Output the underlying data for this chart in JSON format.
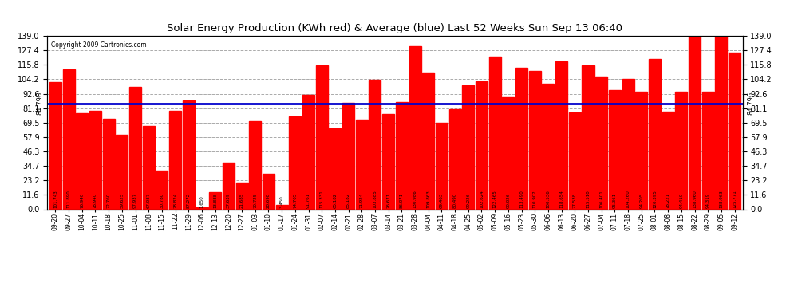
{
  "title": "Solar Energy Production (KWh red) & Average (blue) Last 52 Weeks Sun Sep 13 06:40",
  "copyright": "Copyright 2009 Cartronics.com",
  "bar_color": "#ff0000",
  "avg_color": "#0000cc",
  "background_color": "#ffffff",
  "grid_color": "#aaaaaa",
  "ylim": [
    0,
    139.0
  ],
  "yticks": [
    0.0,
    11.6,
    23.2,
    34.7,
    46.3,
    57.9,
    69.5,
    81.1,
    92.6,
    104.2,
    115.8,
    127.4,
    139.0
  ],
  "average": 84.796,
  "categories": [
    "09-20",
    "09-27",
    "10-04",
    "10-11",
    "10-18",
    "10-25",
    "11-01",
    "11-08",
    "11-15",
    "11-22",
    "11-29",
    "12-06",
    "12-13",
    "12-20",
    "12-27",
    "01-03",
    "01-10",
    "01-17",
    "01-24",
    "01-31",
    "02-07",
    "02-14",
    "02-21",
    "02-28",
    "03-07",
    "03-14",
    "03-21",
    "03-28",
    "04-04",
    "04-11",
    "04-18",
    "04-25",
    "05-02",
    "05-09",
    "05-16",
    "05-23",
    "05-30",
    "06-06",
    "06-13",
    "06-20",
    "06-27",
    "07-04",
    "07-11",
    "07-18",
    "07-25",
    "08-01",
    "08-08",
    "08-15",
    "08-22",
    "08-29",
    "09-05",
    "09-12"
  ],
  "values": [
    101.743,
    111.89,
    76.94,
    78.94,
    72.76,
    59.625,
    97.937,
    67.087,
    30.78,
    78.824,
    87.272,
    1.65,
    13.888,
    37.639,
    21.685,
    70.725,
    28.698,
    3.45,
    74.705,
    91.761,
    115.331,
    65.182,
    85.182,
    71.924,
    103.885,
    76.671,
    86.071,
    130.986,
    109.863,
    69.463,
    80.49,
    99.226,
    102.624,
    122.465,
    90.026,
    113.49,
    110.902,
    100.536,
    118.654,
    77.538,
    115.51,
    106.401,
    95.361,
    104.26,
    94.205,
    120.395,
    78.221,
    94.41,
    138.96,
    94.319,
    138.963,
    125.771
  ]
}
